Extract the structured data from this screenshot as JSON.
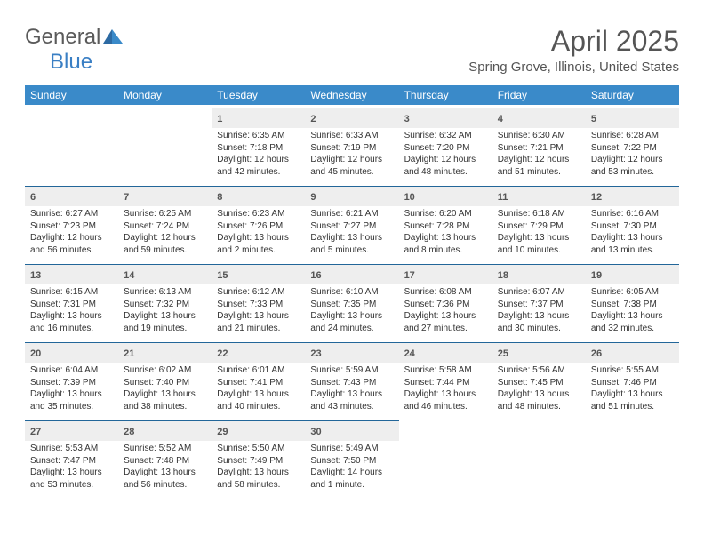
{
  "logo": {
    "text1": "General",
    "text2": "Blue"
  },
  "title": "April 2025",
  "location": "Spring Grove, Illinois, United States",
  "colors": {
    "header_bg": "#3a8ac9",
    "header_fg": "#ffffff",
    "daynum_bg": "#eeeeee",
    "daynum_border": "#226699",
    "text": "#333333",
    "title_color": "#555555",
    "logo_gray": "#5a5a5a",
    "logo_blue": "#3a7fc4"
  },
  "fonts": {
    "title_size_pt": 24,
    "location_size_pt": 11,
    "weekday_size_pt": 9,
    "daynum_size_pt": 8,
    "body_size_pt": 7
  },
  "weekdays": [
    "Sunday",
    "Monday",
    "Tuesday",
    "Wednesday",
    "Thursday",
    "Friday",
    "Saturday"
  ],
  "weeks": [
    [
      null,
      null,
      {
        "n": "1",
        "sr": "6:35 AM",
        "ss": "7:18 PM",
        "dl": "12 hours and 42 minutes."
      },
      {
        "n": "2",
        "sr": "6:33 AM",
        "ss": "7:19 PM",
        "dl": "12 hours and 45 minutes."
      },
      {
        "n": "3",
        "sr": "6:32 AM",
        "ss": "7:20 PM",
        "dl": "12 hours and 48 minutes."
      },
      {
        "n": "4",
        "sr": "6:30 AM",
        "ss": "7:21 PM",
        "dl": "12 hours and 51 minutes."
      },
      {
        "n": "5",
        "sr": "6:28 AM",
        "ss": "7:22 PM",
        "dl": "12 hours and 53 minutes."
      }
    ],
    [
      {
        "n": "6",
        "sr": "6:27 AM",
        "ss": "7:23 PM",
        "dl": "12 hours and 56 minutes."
      },
      {
        "n": "7",
        "sr": "6:25 AM",
        "ss": "7:24 PM",
        "dl": "12 hours and 59 minutes."
      },
      {
        "n": "8",
        "sr": "6:23 AM",
        "ss": "7:26 PM",
        "dl": "13 hours and 2 minutes."
      },
      {
        "n": "9",
        "sr": "6:21 AM",
        "ss": "7:27 PM",
        "dl": "13 hours and 5 minutes."
      },
      {
        "n": "10",
        "sr": "6:20 AM",
        "ss": "7:28 PM",
        "dl": "13 hours and 8 minutes."
      },
      {
        "n": "11",
        "sr": "6:18 AM",
        "ss": "7:29 PM",
        "dl": "13 hours and 10 minutes."
      },
      {
        "n": "12",
        "sr": "6:16 AM",
        "ss": "7:30 PM",
        "dl": "13 hours and 13 minutes."
      }
    ],
    [
      {
        "n": "13",
        "sr": "6:15 AM",
        "ss": "7:31 PM",
        "dl": "13 hours and 16 minutes."
      },
      {
        "n": "14",
        "sr": "6:13 AM",
        "ss": "7:32 PM",
        "dl": "13 hours and 19 minutes."
      },
      {
        "n": "15",
        "sr": "6:12 AM",
        "ss": "7:33 PM",
        "dl": "13 hours and 21 minutes."
      },
      {
        "n": "16",
        "sr": "6:10 AM",
        "ss": "7:35 PM",
        "dl": "13 hours and 24 minutes."
      },
      {
        "n": "17",
        "sr": "6:08 AM",
        "ss": "7:36 PM",
        "dl": "13 hours and 27 minutes."
      },
      {
        "n": "18",
        "sr": "6:07 AM",
        "ss": "7:37 PM",
        "dl": "13 hours and 30 minutes."
      },
      {
        "n": "19",
        "sr": "6:05 AM",
        "ss": "7:38 PM",
        "dl": "13 hours and 32 minutes."
      }
    ],
    [
      {
        "n": "20",
        "sr": "6:04 AM",
        "ss": "7:39 PM",
        "dl": "13 hours and 35 minutes."
      },
      {
        "n": "21",
        "sr": "6:02 AM",
        "ss": "7:40 PM",
        "dl": "13 hours and 38 minutes."
      },
      {
        "n": "22",
        "sr": "6:01 AM",
        "ss": "7:41 PM",
        "dl": "13 hours and 40 minutes."
      },
      {
        "n": "23",
        "sr": "5:59 AM",
        "ss": "7:43 PM",
        "dl": "13 hours and 43 minutes."
      },
      {
        "n": "24",
        "sr": "5:58 AM",
        "ss": "7:44 PM",
        "dl": "13 hours and 46 minutes."
      },
      {
        "n": "25",
        "sr": "5:56 AM",
        "ss": "7:45 PM",
        "dl": "13 hours and 48 minutes."
      },
      {
        "n": "26",
        "sr": "5:55 AM",
        "ss": "7:46 PM",
        "dl": "13 hours and 51 minutes."
      }
    ],
    [
      {
        "n": "27",
        "sr": "5:53 AM",
        "ss": "7:47 PM",
        "dl": "13 hours and 53 minutes."
      },
      {
        "n": "28",
        "sr": "5:52 AM",
        "ss": "7:48 PM",
        "dl": "13 hours and 56 minutes."
      },
      {
        "n": "29",
        "sr": "5:50 AM",
        "ss": "7:49 PM",
        "dl": "13 hours and 58 minutes."
      },
      {
        "n": "30",
        "sr": "5:49 AM",
        "ss": "7:50 PM",
        "dl": "14 hours and 1 minute."
      },
      null,
      null,
      null
    ]
  ],
  "labels": {
    "sunrise": "Sunrise:",
    "sunset": "Sunset:",
    "daylight": "Daylight:"
  }
}
